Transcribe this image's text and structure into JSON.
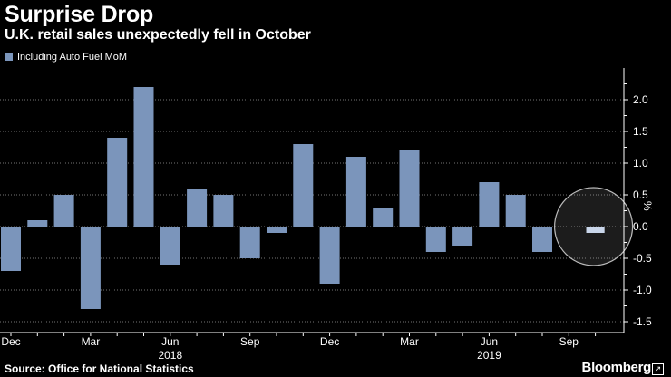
{
  "header": {
    "title": "Surprise Drop",
    "subtitle": "U.K. retail sales unexpectedly fell in October"
  },
  "footer": {
    "source": "Source: Office for National Statistics",
    "brand": "Bloomberg",
    "brand_icon": "external-link-icon"
  },
  "colors": {
    "background": "#000000",
    "bar": "#7b95bb",
    "highlight_bar": "#c9d6ea",
    "gridline": "#ffffff",
    "text": "#ffffff",
    "highlight_circle": "#e6e6e6"
  },
  "chart_data": {
    "type": "bar",
    "title": "Surprise Drop",
    "subtitle": "U.K. retail sales unexpectedly fell in October",
    "legend": [
      "Including Auto Fuel MoM"
    ],
    "legend_position": "top-left",
    "ylabel": "%",
    "ylim": [
      -1.5,
      2.5
    ],
    "yticks": [
      -1.5,
      -1.0,
      -0.5,
      0.0,
      0.5,
      1.0,
      1.5,
      2.0
    ],
    "ytick_labels": [
      "-1.5",
      "-1.0",
      "-0.5",
      "0.0",
      "0.5",
      "1.0",
      "1.5",
      "2.0"
    ],
    "grid": "horizontal dotted",
    "categories": [
      "Dec 2017",
      "Jan 2018",
      "Feb 2018",
      "Mar 2018",
      "Apr 2018",
      "May 2018",
      "Jun 2018",
      "Jul 2018",
      "Aug 2018",
      "Sep 2018",
      "Oct 2018",
      "Nov 2018",
      "Dec 2018",
      "Jan 2019",
      "Feb 2019",
      "Mar 2019",
      "Apr 2019",
      "May 2019",
      "Jun 2019",
      "Jul 2019",
      "Aug 2019",
      "Sep 2019",
      "Oct 2019"
    ],
    "series": [
      {
        "name": "Including Auto Fuel MoM",
        "values": [
          -0.7,
          0.1,
          0.5,
          -1.3,
          1.4,
          2.2,
          -0.6,
          0.6,
          0.5,
          -0.5,
          -0.1,
          1.3,
          -0.9,
          1.1,
          0.3,
          1.2,
          -0.4,
          -0.3,
          0.7,
          0.5,
          -0.4,
          0.0,
          -0.1
        ]
      }
    ],
    "highlight_index": 22,
    "x_tick_labels": [
      {
        "index": 0,
        "label": "Dec"
      },
      {
        "index": 3,
        "label": "Mar"
      },
      {
        "index": 6,
        "label": "Jun"
      },
      {
        "index": 9,
        "label": "Sep"
      },
      {
        "index": 12,
        "label": "Dec"
      },
      {
        "index": 15,
        "label": "Mar"
      },
      {
        "index": 18,
        "label": "Jun"
      },
      {
        "index": 21,
        "label": "Sep"
      }
    ],
    "year_labels": [
      {
        "index": 6,
        "label": "2018"
      },
      {
        "index": 18,
        "label": "2019"
      }
    ]
  }
}
